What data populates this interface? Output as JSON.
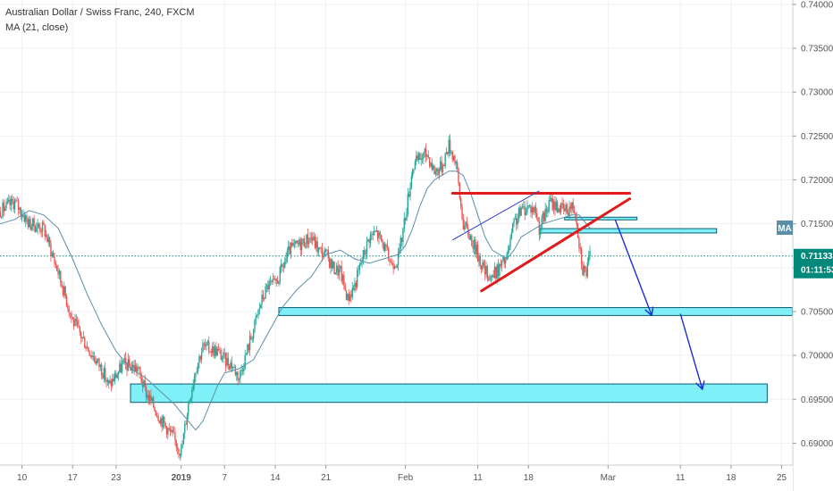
{
  "legend": {
    "symbol_line": "Australian Dollar / Swiss Franc, 240, FXCM",
    "indicator_line": "MA (21, close)"
  },
  "tags": {
    "ma_label": "MA",
    "price": "0.71133",
    "countdown": "01:11:53"
  },
  "colors": {
    "bull": "#26a69a",
    "bear": "#ef5350",
    "ma": "#5b8fa8",
    "zone_fill": "#7ff0f7",
    "zone_stroke": "#0b5d73",
    "triangle": "#e01b1b",
    "arrow": "#1a2fd6",
    "thin_line": "#3340c9",
    "price_tag": "#00897b",
    "ma_tag": "#5b8fa8"
  },
  "chart_data": {
    "type": "candlestick",
    "title": "Australian Dollar / Swiss Franc, 240, FXCM",
    "indicator": "MA (21, close)",
    "y_axis": {
      "side": "right",
      "ticks": [
        "0.74000",
        "0.73500",
        "0.73000",
        "0.72500",
        "0.72000",
        "0.71500",
        "0.71000",
        "0.70500",
        "0.70000",
        "0.69500",
        "0.69000"
      ],
      "range": [
        0.6875,
        0.7405
      ]
    },
    "x_axis": {
      "ticks": [
        {
          "label": "10",
          "day": 10
        },
        {
          "label": "17",
          "day": 17
        },
        {
          "label": "23",
          "day": 23
        },
        {
          "label": "2019",
          "day": 32
        },
        {
          "label": "7",
          "day": 38
        },
        {
          "label": "14",
          "day": 45
        },
        {
          "label": "21",
          "day": 52
        },
        {
          "label": "Feb",
          "day": 63
        },
        {
          "label": "11",
          "day": 73
        },
        {
          "label": "18",
          "day": 80
        },
        {
          "label": "Mar",
          "day": 91
        },
        {
          "label": "11",
          "day": 101
        },
        {
          "label": "18",
          "day": 108
        },
        {
          "label": "25",
          "day": 115
        }
      ]
    },
    "last_price": 0.71133,
    "price_path": [
      [
        0,
        0.7185
      ],
      [
        2,
        0.716
      ],
      [
        4,
        0.7115
      ],
      [
        7,
        0.7165
      ],
      [
        9,
        0.7175
      ],
      [
        11,
        0.715
      ],
      [
        13,
        0.7145
      ],
      [
        15,
        0.7095
      ],
      [
        17,
        0.704
      ],
      [
        19,
        0.701
      ],
      [
        21,
        0.6985
      ],
      [
        22,
        0.6965
      ],
      [
        24,
        0.699
      ],
      [
        26,
        0.6985
      ],
      [
        27,
        0.696
      ],
      [
        29,
        0.693
      ],
      [
        31,
        0.6905
      ],
      [
        32,
        0.689
      ],
      [
        33,
        0.6945
      ],
      [
        34,
        0.6985
      ],
      [
        35,
        0.701
      ],
      [
        37,
        0.7005
      ],
      [
        38,
        0.6995
      ],
      [
        39,
        0.699
      ],
      [
        40,
        0.6975
      ],
      [
        42,
        0.703
      ],
      [
        43,
        0.706
      ],
      [
        44,
        0.708
      ],
      [
        45,
        0.708
      ],
      [
        46,
        0.71
      ],
      [
        47,
        0.712
      ],
      [
        48,
        0.7125
      ],
      [
        49,
        0.713
      ],
      [
        50,
        0.7135
      ],
      [
        51,
        0.712
      ],
      [
        52,
        0.7115
      ],
      [
        53,
        0.71
      ],
      [
        54,
        0.7095
      ],
      [
        55,
        0.7065
      ],
      [
        56,
        0.708
      ],
      [
        57,
        0.711
      ],
      [
        58,
        0.7135
      ],
      [
        59,
        0.714
      ],
      [
        60,
        0.7125
      ],
      [
        61,
        0.7105
      ],
      [
        62,
        0.711
      ],
      [
        63,
        0.716
      ],
      [
        64,
        0.7215
      ],
      [
        65,
        0.7225
      ],
      [
        66,
        0.723
      ],
      [
        67,
        0.721
      ],
      [
        68,
        0.7215
      ],
      [
        69,
        0.724
      ],
      [
        70,
        0.722
      ],
      [
        70.5,
        0.718
      ],
      [
        71,
        0.715
      ],
      [
        72,
        0.7135
      ],
      [
        73,
        0.7115
      ],
      [
        74,
        0.7095
      ],
      [
        75,
        0.709
      ],
      [
        76,
        0.71
      ],
      [
        77,
        0.711
      ],
      [
        78,
        0.715
      ],
      [
        79,
        0.7165
      ],
      [
        80,
        0.717
      ],
      [
        81,
        0.7165
      ],
      [
        81.5,
        0.7145
      ],
      [
        82,
        0.7155
      ],
      [
        83,
        0.7175
      ],
      [
        84,
        0.717
      ],
      [
        85,
        0.7165
      ],
      [
        86,
        0.717
      ],
      [
        86.5,
        0.7165
      ],
      [
        87,
        0.713
      ],
      [
        87.5,
        0.71
      ],
      [
        88,
        0.7095
      ],
      [
        88.5,
        0.7113
      ]
    ],
    "ma_path": [
      [
        -1,
        0.731
      ],
      [
        1,
        0.727
      ],
      [
        3,
        0.722
      ],
      [
        5,
        0.717
      ],
      [
        7,
        0.715
      ],
      [
        9,
        0.7155
      ],
      [
        11,
        0.7165
      ],
      [
        13,
        0.716
      ],
      [
        15,
        0.7145
      ],
      [
        17,
        0.711
      ],
      [
        19,
        0.707
      ],
      [
        21,
        0.7035
      ],
      [
        23,
        0.7005
      ],
      [
        25,
        0.6985
      ],
      [
        27,
        0.6975
      ],
      [
        29,
        0.696
      ],
      [
        31,
        0.6945
      ],
      [
        33,
        0.6925
      ],
      [
        34,
        0.6915
      ],
      [
        35,
        0.6925
      ],
      [
        36,
        0.6945
      ],
      [
        37,
        0.6965
      ],
      [
        38,
        0.698
      ],
      [
        40,
        0.6985
      ],
      [
        42,
        0.6995
      ],
      [
        44,
        0.7025
      ],
      [
        46,
        0.7055
      ],
      [
        48,
        0.7075
      ],
      [
        50,
        0.709
      ],
      [
        52,
        0.7115
      ],
      [
        54,
        0.712
      ],
      [
        56,
        0.711
      ],
      [
        58,
        0.7105
      ],
      [
        60,
        0.711
      ],
      [
        62,
        0.7115
      ],
      [
        63,
        0.7125
      ],
      [
        64,
        0.7145
      ],
      [
        65,
        0.717
      ],
      [
        66,
        0.719
      ],
      [
        67,
        0.72
      ],
      [
        68,
        0.7205
      ],
      [
        69,
        0.721
      ],
      [
        70,
        0.721
      ],
      [
        71,
        0.7205
      ],
      [
        72,
        0.7185
      ],
      [
        73,
        0.716
      ],
      [
        74,
        0.7135
      ],
      [
        75,
        0.712
      ],
      [
        76,
        0.7115
      ],
      [
        77,
        0.711
      ],
      [
        78,
        0.712
      ],
      [
        79,
        0.7135
      ],
      [
        80,
        0.714
      ],
      [
        82,
        0.715
      ],
      [
        84,
        0.7155
      ],
      [
        86,
        0.716
      ],
      [
        87,
        0.716
      ],
      [
        88,
        0.715
      ],
      [
        88.5,
        0.7145
      ]
    ],
    "annotations": {
      "zones": [
        {
          "x1": 25,
          "x2": 113,
          "y1": 0.69465,
          "y2": 0.69675
        },
        {
          "x1": 45.5,
          "x2": 116.5,
          "y1": 0.70455,
          "y2": 0.70545
        },
        {
          "x1": 81.5,
          "x2": 106,
          "y1": 0.71395,
          "y2": 0.71445
        },
        {
          "x1": 85,
          "x2": 95,
          "y1": 0.71545,
          "y2": 0.71575
        }
      ],
      "triangle_lines": [
        {
          "from": [
            69.5,
            0.71848
          ],
          "to": [
            94,
            0.71848
          ]
        },
        {
          "from": [
            73.5,
            0.70735
          ],
          "to": [
            94,
            0.71785
          ]
        }
      ],
      "thin_lines": [
        {
          "from": [
            69.5,
            0.71315
          ],
          "to": [
            81.5,
            0.71875
          ]
        }
      ],
      "arrows": [
        {
          "from": [
            92,
            0.71545
          ],
          "to": [
            97,
            0.70465
          ]
        },
        {
          "from": [
            101,
            0.70475
          ],
          "to": [
            104,
            0.69625
          ]
        }
      ]
    }
  }
}
